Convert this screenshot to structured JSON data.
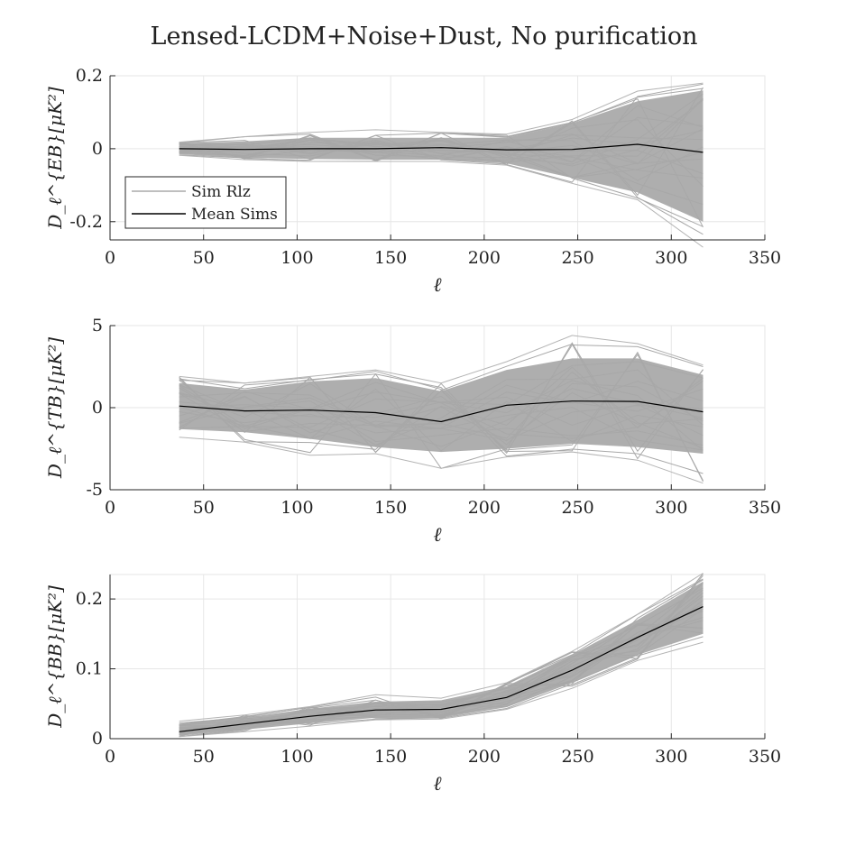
{
  "figure": {
    "title": "Lensed-LCDM+Noise+Dust, No purification"
  },
  "legend": {
    "sim_label": "Sim Rlz",
    "mean_label": "Mean Sims",
    "sim_color": "#aaaaaa",
    "mean_color": "#000000"
  },
  "chart_data": [
    {
      "type": "line",
      "panel": "EB",
      "xlabel": "ℓ",
      "ylabel": "D_ℓ^{EB}[μK²]",
      "xlim": [
        0,
        350
      ],
      "ylim": [
        -0.25,
        0.2
      ],
      "xticks": [
        0,
        50,
        100,
        150,
        200,
        250,
        300,
        350
      ],
      "xtick_labels": [
        "0",
        "50",
        "100",
        "150",
        "200",
        "250",
        "300",
        "350"
      ],
      "yticks": [
        -0.2,
        0,
        0.2
      ],
      "ytick_labels": [
        "-0.2",
        "0",
        "0.2"
      ],
      "grid": true,
      "legend_position": "lower-left",
      "x": [
        37,
        72,
        107,
        142,
        177,
        212,
        247,
        282,
        317
      ],
      "series": [
        {
          "name": "Mean Sims",
          "values": [
            0.0,
            -0.002,
            0.0,
            0.0,
            0.003,
            -0.003,
            -0.002,
            0.012,
            -0.01
          ]
        }
      ],
      "sim_band": {
        "upper": [
          0.015,
          0.02,
          0.03,
          0.03,
          0.03,
          0.03,
          0.07,
          0.13,
          0.16
        ],
        "lower": [
          -0.015,
          -0.025,
          -0.028,
          -0.03,
          -0.03,
          -0.04,
          -0.08,
          -0.12,
          -0.2
        ],
        "extreme_upper": [
          0.018,
          0.033,
          0.045,
          0.052,
          0.045,
          0.04,
          0.08,
          0.158,
          0.18
        ],
        "extreme_lower": [
          -0.018,
          -0.03,
          -0.035,
          -0.035,
          -0.035,
          -0.045,
          -0.095,
          -0.14,
          -0.27
        ]
      }
    },
    {
      "type": "line",
      "panel": "TB",
      "xlabel": "ℓ",
      "ylabel": "D_ℓ^{TB}[μK²]",
      "xlim": [
        0,
        350
      ],
      "ylim": [
        -5,
        5
      ],
      "xticks": [
        0,
        50,
        100,
        150,
        200,
        250,
        300,
        350
      ],
      "xtick_labels": [
        "0",
        "50",
        "100",
        "150",
        "200",
        "250",
        "300",
        "350"
      ],
      "yticks": [
        -5,
        0,
        5
      ],
      "ytick_labels": [
        "-5",
        "0",
        "5"
      ],
      "grid": true,
      "x": [
        37,
        72,
        107,
        142,
        177,
        212,
        247,
        282,
        317
      ],
      "series": [
        {
          "name": "Mean Sims",
          "values": [
            0.1,
            -0.2,
            -0.15,
            -0.3,
            -0.85,
            0.15,
            0.4,
            0.38,
            -0.25
          ]
        }
      ],
      "sim_band": {
        "upper": [
          1.5,
          1.1,
          1.6,
          1.8,
          1.0,
          2.3,
          3.0,
          3.0,
          2.0
        ],
        "lower": [
          -1.3,
          -1.5,
          -1.9,
          -2.4,
          -2.7,
          -2.5,
          -2.2,
          -2.4,
          -2.8
        ],
        "extreme_upper": [
          1.9,
          1.5,
          1.9,
          2.3,
          1.5,
          2.8,
          4.4,
          3.9,
          2.6
        ],
        "extreme_lower": [
          -1.8,
          -2.1,
          -2.9,
          -2.8,
          -3.7,
          -3.0,
          -2.7,
          -3.2,
          -4.6
        ]
      }
    },
    {
      "type": "line",
      "panel": "BB",
      "xlabel": "ℓ",
      "ylabel": "D_ℓ^{BB}[μK²]",
      "xlim": [
        0,
        350
      ],
      "ylim": [
        0,
        0.235
      ],
      "xticks": [
        0,
        50,
        100,
        150,
        200,
        250,
        300,
        350
      ],
      "xtick_labels": [
        "0",
        "50",
        "100",
        "150",
        "200",
        "250",
        "300",
        "350"
      ],
      "yticks": [
        0,
        0.1,
        0.2
      ],
      "ytick_labels": [
        "0",
        "0.1",
        "0.2"
      ],
      "grid": true,
      "x": [
        37,
        72,
        107,
        142,
        177,
        212,
        247,
        282,
        317
      ],
      "series": [
        {
          "name": "Mean Sims",
          "values": [
            0.01,
            0.021,
            0.032,
            0.041,
            0.042,
            0.059,
            0.098,
            0.145,
            0.189
          ]
        }
      ],
      "sim_band": {
        "upper": [
          0.02,
          0.03,
          0.043,
          0.053,
          0.055,
          0.075,
          0.12,
          0.17,
          0.225
        ],
        "lower": [
          0.004,
          0.013,
          0.022,
          0.03,
          0.03,
          0.045,
          0.08,
          0.12,
          0.15
        ],
        "extreme_upper": [
          0.025,
          0.034,
          0.046,
          0.063,
          0.058,
          0.08,
          0.125,
          0.178,
          0.237
        ],
        "extreme_lower": [
          0.003,
          0.01,
          0.018,
          0.027,
          0.028,
          0.042,
          0.072,
          0.112,
          0.138
        ]
      }
    }
  ]
}
